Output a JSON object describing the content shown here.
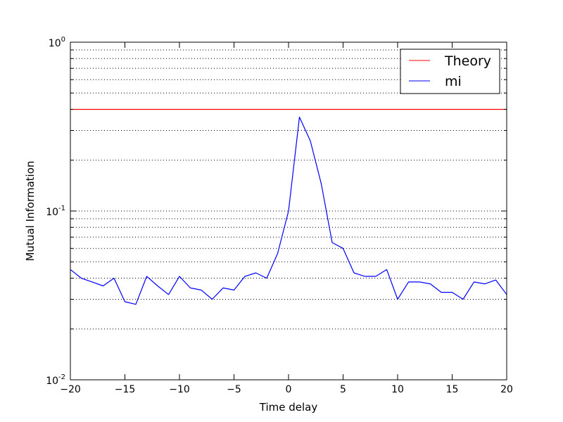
{
  "chart_data": {
    "type": "line",
    "xlabel": "Time delay",
    "ylabel": "Mutual Information",
    "xlim": [
      -20,
      20
    ],
    "ylim": [
      0.01,
      1
    ],
    "yscale": "log",
    "grid": "y-dotted",
    "legend_position": "top-right",
    "x_ticks": [
      "−20",
      "−15",
      "−10",
      "−5",
      "0",
      "5",
      "10",
      "15",
      "20"
    ],
    "x_tick_values": [
      -20,
      -15,
      -10,
      -5,
      0,
      5,
      10,
      15,
      20
    ],
    "y_ticks": [
      {
        "value": 1,
        "base": "10",
        "exp": "0"
      },
      {
        "value": 0.1,
        "base": "10",
        "exp": "-1"
      },
      {
        "value": 0.01,
        "base": "10",
        "exp": "-2"
      }
    ],
    "series": [
      {
        "name": "Theory",
        "color": "#ff0000",
        "x": [
          -20,
          20
        ],
        "y": [
          0.4,
          0.4
        ]
      },
      {
        "name": "mi",
        "color": "#0000ff",
        "x": [
          -20,
          -19,
          -18,
          -17,
          -16,
          -15,
          -14,
          -13,
          -12,
          -11,
          -10,
          -9,
          -8,
          -7,
          -6,
          -5,
          -4,
          -3,
          -2,
          -1,
          0,
          1,
          2,
          3,
          4,
          5,
          6,
          7,
          8,
          9,
          10,
          11,
          12,
          13,
          14,
          15,
          16,
          17,
          18,
          19,
          20
        ],
        "y": [
          0.045,
          0.04,
          0.038,
          0.036,
          0.04,
          0.029,
          0.028,
          0.041,
          0.036,
          0.032,
          0.041,
          0.035,
          0.034,
          0.03,
          0.035,
          0.034,
          0.041,
          0.043,
          0.04,
          0.056,
          0.1,
          0.36,
          0.26,
          0.145,
          0.065,
          0.06,
          0.043,
          0.041,
          0.041,
          0.045,
          0.03,
          0.038,
          0.038,
          0.037,
          0.033,
          0.033,
          0.03,
          0.038,
          0.037,
          0.039,
          0.032
        ]
      }
    ]
  }
}
